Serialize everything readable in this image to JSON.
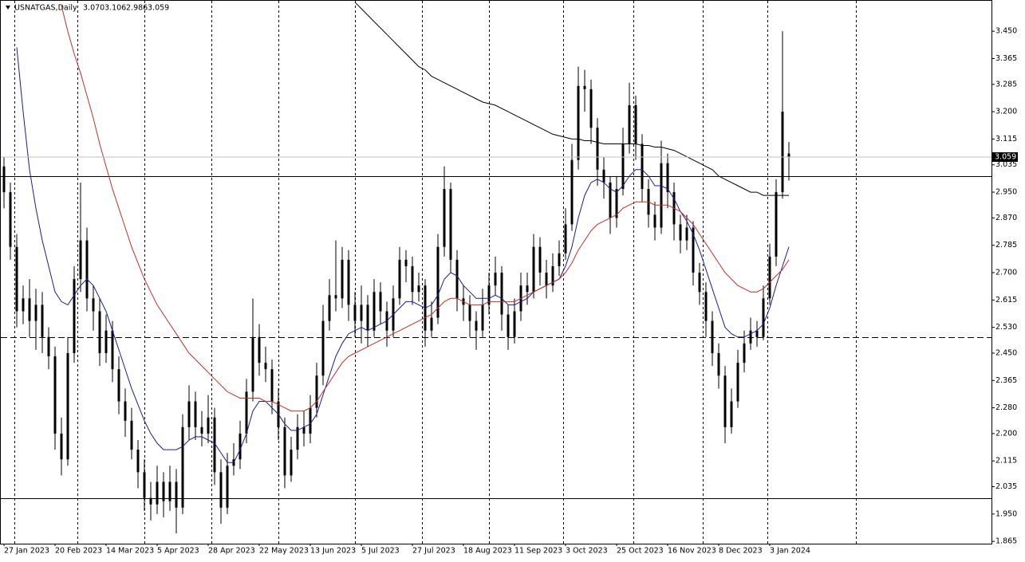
{
  "chart_data": {
    "type": "candlestick",
    "title": "USNATGAS,Daily",
    "last_bar_labels": [
      "3.070",
      "3.106",
      "2.986",
      "3.059"
    ],
    "categories": [
      "27 Jan 2023",
      null,
      null,
      null,
      null,
      null,
      null,
      null,
      "20 Feb 2023",
      null,
      null,
      null,
      null,
      null,
      null,
      null,
      "14 Mar 2023",
      null,
      null,
      null,
      null,
      null,
      null,
      null,
      "5 Apr 2023",
      null,
      null,
      null,
      null,
      null,
      null,
      null,
      "28 Apr 2023",
      null,
      null,
      null,
      null,
      null,
      null,
      null,
      "22 May 2023",
      null,
      null,
      null,
      null,
      null,
      null,
      null,
      "13 Jun 2023",
      null,
      null,
      null,
      null,
      null,
      null,
      null,
      "5 Jul 2023",
      null,
      null,
      null,
      null,
      null,
      null,
      null,
      "27 Jul 2023",
      null,
      null,
      null,
      null,
      null,
      null,
      null,
      "18 Aug 2023",
      null,
      null,
      null,
      null,
      null,
      null,
      null,
      "11 Sep 2023",
      null,
      null,
      null,
      null,
      null,
      null,
      null,
      "3 Oct 2023",
      null,
      null,
      null,
      null,
      null,
      null,
      null,
      "25 Oct 2023",
      null,
      null,
      null,
      null,
      null,
      null,
      null,
      "16 Nov 2023",
      null,
      null,
      null,
      null,
      null,
      null,
      null,
      "8 Dec 2023",
      null,
      null,
      null,
      null,
      null,
      null,
      null,
      "3 Jan 2024",
      null,
      null,
      null
    ],
    "open": [
      3.03,
      2.95,
      2.78,
      2.58,
      2.62,
      2.55,
      2.6,
      2.5,
      2.44,
      2.2,
      2.12,
      2.45,
      2.68,
      2.8,
      2.62,
      2.58,
      2.45,
      2.52,
      2.4,
      2.3,
      2.24,
      2.15,
      2.08,
      2.0,
      1.98,
      2.05,
      1.99,
      2.05,
      1.97,
      2.22,
      2.3,
      2.22,
      2.2,
      2.25,
      2.08,
      1.97,
      2.1,
      2.12,
      2.2,
      2.33,
      2.5,
      2.42,
      2.4,
      2.3,
      2.22,
      2.07,
      2.15,
      2.22,
      2.2,
      2.28,
      2.38,
      2.55,
      2.63,
      2.62,
      2.74,
      2.6,
      2.55,
      2.6,
      2.52,
      2.64,
      2.58,
      2.52,
      2.62,
      2.74,
      2.72,
      2.64,
      2.66,
      2.52,
      2.56,
      2.78,
      2.96,
      2.74,
      2.62,
      2.6,
      2.55,
      2.52,
      2.6,
      2.66,
      2.7,
      2.57,
      2.5,
      2.58,
      2.66,
      2.64,
      2.78,
      2.7,
      2.66,
      2.72,
      2.76,
      2.85,
      3.05,
      3.28,
      3.27,
      3.15,
      3.02,
      2.98,
      2.87,
      2.96,
      3.1,
      3.22,
      3.1,
      2.96,
      2.88,
      2.84,
      3.04,
      2.95,
      2.85,
      2.8,
      2.84,
      2.7,
      2.64,
      2.55,
      2.45,
      2.38,
      2.22,
      2.3,
      2.42,
      2.48,
      2.52,
      2.5,
      2.62,
      2.75,
      2.95,
      3.07
    ],
    "high": [
      3.06,
      2.98,
      2.82,
      2.66,
      2.68,
      2.65,
      2.64,
      2.53,
      2.47,
      2.25,
      2.5,
      2.72,
      2.98,
      2.84,
      2.66,
      2.62,
      2.57,
      2.55,
      2.44,
      2.34,
      2.28,
      2.18,
      2.12,
      2.05,
      2.1,
      2.08,
      2.1,
      2.09,
      2.26,
      2.35,
      2.33,
      2.27,
      2.32,
      2.28,
      2.12,
      2.14,
      2.17,
      2.24,
      2.37,
      2.62,
      2.54,
      2.47,
      2.43,
      2.34,
      2.25,
      2.19,
      2.26,
      2.27,
      2.32,
      2.42,
      2.6,
      2.68,
      2.8,
      2.78,
      2.77,
      2.64,
      2.66,
      2.63,
      2.68,
      2.67,
      2.61,
      2.66,
      2.78,
      2.77,
      2.75,
      2.7,
      2.68,
      2.61,
      2.82,
      3.03,
      2.98,
      2.77,
      2.66,
      2.63,
      2.58,
      2.65,
      2.7,
      2.75,
      2.72,
      2.6,
      2.62,
      2.7,
      2.7,
      2.82,
      2.81,
      2.74,
      2.76,
      2.8,
      2.9,
      3.1,
      3.34,
      3.33,
      3.3,
      3.18,
      3.06,
      3.0,
      3.0,
      3.15,
      3.29,
      3.25,
      3.13,
      2.99,
      2.92,
      3.11,
      3.07,
      2.98,
      2.88,
      2.88,
      2.86,
      2.73,
      2.67,
      2.58,
      2.48,
      2.41,
      2.34,
      2.46,
      2.52,
      2.56,
      2.55,
      2.66,
      2.79,
      2.99,
      3.45,
      3.106
    ],
    "low": [
      2.9,
      2.74,
      2.53,
      2.54,
      2.5,
      2.46,
      2.45,
      2.4,
      2.15,
      2.07,
      2.1,
      2.42,
      2.64,
      2.58,
      2.52,
      2.41,
      2.42,
      2.36,
      2.26,
      2.19,
      2.12,
      2.03,
      1.96,
      1.93,
      1.95,
      1.94,
      1.96,
      1.89,
      1.95,
      2.18,
      2.18,
      2.16,
      2.17,
      2.04,
      1.92,
      1.95,
      2.07,
      2.09,
      2.17,
      2.3,
      2.38,
      2.36,
      2.26,
      2.18,
      2.03,
      2.05,
      2.12,
      2.16,
      2.17,
      2.25,
      2.35,
      2.52,
      2.58,
      2.59,
      2.55,
      2.5,
      2.48,
      2.47,
      2.5,
      2.54,
      2.47,
      2.5,
      2.6,
      2.67,
      2.6,
      2.61,
      2.47,
      2.5,
      2.54,
      2.75,
      2.7,
      2.58,
      2.55,
      2.5,
      2.46,
      2.5,
      2.57,
      2.63,
      2.52,
      2.46,
      2.48,
      2.55,
      2.6,
      2.62,
      2.66,
      2.62,
      2.64,
      2.69,
      2.74,
      2.83,
      3.02,
      3.2,
      3.1,
      2.97,
      2.93,
      2.82,
      2.84,
      2.94,
      3.07,
      3.05,
      2.92,
      2.84,
      2.8,
      2.82,
      2.9,
      2.8,
      2.76,
      2.77,
      2.66,
      2.6,
      2.5,
      2.41,
      2.34,
      2.17,
      2.2,
      2.28,
      2.39,
      2.46,
      2.47,
      2.49,
      2.6,
      2.72,
      2.93,
      2.986
    ],
    "close": [
      2.95,
      2.78,
      2.58,
      2.62,
      2.55,
      2.6,
      2.5,
      2.44,
      2.2,
      2.12,
      2.45,
      2.68,
      2.8,
      2.62,
      2.58,
      2.45,
      2.52,
      2.4,
      2.3,
      2.24,
      2.15,
      2.08,
      2.0,
      1.98,
      2.05,
      1.99,
      2.05,
      1.97,
      2.22,
      2.3,
      2.22,
      2.2,
      2.25,
      2.08,
      1.97,
      2.1,
      2.12,
      2.2,
      2.33,
      2.5,
      2.42,
      2.4,
      2.3,
      2.22,
      2.07,
      2.15,
      2.22,
      2.2,
      2.28,
      2.38,
      2.55,
      2.63,
      2.62,
      2.74,
      2.6,
      2.55,
      2.6,
      2.52,
      2.64,
      2.58,
      2.52,
      2.62,
      2.74,
      2.72,
      2.64,
      2.66,
      2.52,
      2.56,
      2.78,
      2.96,
      2.74,
      2.62,
      2.6,
      2.55,
      2.52,
      2.6,
      2.66,
      2.7,
      2.57,
      2.5,
      2.58,
      2.66,
      2.64,
      2.78,
      2.7,
      2.66,
      2.72,
      2.76,
      2.85,
      3.05,
      3.28,
      3.27,
      3.15,
      3.02,
      2.98,
      2.87,
      2.96,
      3.1,
      3.22,
      3.1,
      2.96,
      2.88,
      2.84,
      3.04,
      2.95,
      2.85,
      2.8,
      2.84,
      2.7,
      2.64,
      2.55,
      2.45,
      2.38,
      2.22,
      2.3,
      2.42,
      2.48,
      2.52,
      2.5,
      2.62,
      2.75,
      2.95,
      3.2,
      3.059
    ],
    "candle_color": "#000000",
    "moving_averages": [
      {
        "color": "#1c1c9c",
        "values": [
          null,
          null,
          3.4,
          3.2,
          3.02,
          2.9,
          2.8,
          2.72,
          2.64,
          2.61,
          2.6,
          2.63,
          2.66,
          2.68,
          2.66,
          2.62,
          2.58,
          2.52,
          2.46,
          2.4,
          2.34,
          2.29,
          2.24,
          2.2,
          2.17,
          2.15,
          2.15,
          2.15,
          2.16,
          2.18,
          2.19,
          2.19,
          2.18,
          2.17,
          2.14,
          2.11,
          2.11,
          2.15,
          2.2,
          2.27,
          2.3,
          2.3,
          2.28,
          2.26,
          2.23,
          2.21,
          2.21,
          2.22,
          2.23,
          2.26,
          2.32,
          2.38,
          2.44,
          2.48,
          2.51,
          2.52,
          2.53,
          2.52,
          2.53,
          2.54,
          2.55,
          2.57,
          2.59,
          2.61,
          2.61,
          2.6,
          2.59,
          2.6,
          2.63,
          2.68,
          2.7,
          2.69,
          2.66,
          2.64,
          2.62,
          2.62,
          2.62,
          2.63,
          2.62,
          2.6,
          2.6,
          2.61,
          2.62,
          2.64,
          2.65,
          2.66,
          2.67,
          2.68,
          2.72,
          2.78,
          2.87,
          2.94,
          2.98,
          2.99,
          2.98,
          2.96,
          2.95,
          2.97,
          3.0,
          3.02,
          3.02,
          3.0,
          2.97,
          2.97,
          2.96,
          2.93,
          2.89,
          2.86,
          2.82,
          2.77,
          2.71,
          2.65,
          2.59,
          2.53,
          2.51,
          2.5,
          2.5,
          2.51,
          2.52,
          2.54,
          2.59,
          2.66,
          2.72,
          2.78
        ]
      },
      {
        "color": "#c0302a",
        "values": [
          null,
          null,
          null,
          null,
          null,
          null,
          null,
          null,
          null,
          3.53,
          3.45,
          3.38,
          3.32,
          3.25,
          3.18,
          3.1,
          3.03,
          2.96,
          2.9,
          2.84,
          2.78,
          2.73,
          2.68,
          2.64,
          2.6,
          2.57,
          2.54,
          2.51,
          2.48,
          2.45,
          2.43,
          2.41,
          2.39,
          2.37,
          2.35,
          2.33,
          2.32,
          2.31,
          2.31,
          2.31,
          2.31,
          2.3,
          2.3,
          2.29,
          2.28,
          2.27,
          2.27,
          2.27,
          2.28,
          2.3,
          2.33,
          2.36,
          2.39,
          2.42,
          2.44,
          2.45,
          2.46,
          2.47,
          2.48,
          2.49,
          2.5,
          2.51,
          2.52,
          2.53,
          2.54,
          2.55,
          2.56,
          2.57,
          2.59,
          2.61,
          2.62,
          2.62,
          2.61,
          2.6,
          2.6,
          2.6,
          2.61,
          2.61,
          2.61,
          2.61,
          2.61,
          2.62,
          2.63,
          2.64,
          2.65,
          2.66,
          2.67,
          2.68,
          2.7,
          2.73,
          2.77,
          2.8,
          2.83,
          2.85,
          2.86,
          2.87,
          2.88,
          2.9,
          2.91,
          2.92,
          2.92,
          2.92,
          2.91,
          2.91,
          2.91,
          2.9,
          2.89,
          2.87,
          2.85,
          2.82,
          2.79,
          2.76,
          2.73,
          2.7,
          2.68,
          2.66,
          2.65,
          2.64,
          2.64,
          2.65,
          2.67,
          2.69,
          2.71,
          2.74
        ]
      },
      {
        "color": "#000000",
        "values": [
          null,
          null,
          null,
          null,
          null,
          null,
          null,
          null,
          null,
          null,
          null,
          null,
          null,
          null,
          null,
          null,
          null,
          null,
          null,
          null,
          null,
          null,
          null,
          null,
          null,
          null,
          null,
          null,
          null,
          null,
          null,
          null,
          null,
          null,
          null,
          null,
          null,
          null,
          null,
          null,
          null,
          null,
          null,
          null,
          null,
          null,
          null,
          null,
          null,
          null,
          null,
          null,
          null,
          null,
          null,
          3.54,
          3.52,
          3.5,
          3.48,
          3.46,
          3.44,
          3.42,
          3.4,
          3.38,
          3.36,
          3.34,
          3.33,
          3.31,
          3.3,
          3.29,
          3.28,
          3.27,
          3.26,
          3.25,
          3.24,
          3.23,
          3.225,
          3.22,
          3.21,
          3.2,
          3.19,
          3.18,
          3.17,
          3.16,
          3.15,
          3.14,
          3.13,
          3.125,
          3.12,
          3.115,
          3.115,
          3.11,
          3.11,
          3.105,
          3.1,
          3.1,
          3.1,
          3.1,
          3.1,
          3.1,
          3.095,
          3.095,
          3.09,
          3.09,
          3.085,
          3.08,
          3.07,
          3.06,
          3.05,
          3.04,
          3.03,
          3.02,
          3.0,
          2.99,
          2.98,
          2.97,
          2.96,
          2.95,
          2.95,
          2.94,
          2.94,
          2.94,
          2.94,
          2.94
        ]
      }
    ],
    "hlines": [
      {
        "value": 3.0,
        "style": "solid"
      },
      {
        "value": 2.5,
        "style": "dashed"
      },
      {
        "value": 2.0,
        "style": "solid"
      }
    ],
    "ylim": [
      1.858,
      3.547
    ],
    "yticks": [
      {
        "value": 1.865,
        "label": "1.865"
      },
      {
        "value": 1.95,
        "label": "1.950"
      },
      {
        "value": 2.035,
        "label": "2.035"
      },
      {
        "value": 2.115,
        "label": "2.115"
      },
      {
        "value": 2.2,
        "label": "2.200"
      },
      {
        "value": 2.28,
        "label": "2.280"
      },
      {
        "value": 2.365,
        "label": "2.365"
      },
      {
        "value": 2.45,
        "label": "2.450"
      },
      {
        "value": 2.53,
        "label": "2.530"
      },
      {
        "value": 2.615,
        "label": "2.615"
      },
      {
        "value": 2.7,
        "label": "2.700"
      },
      {
        "value": 2.785,
        "label": "2.785"
      },
      {
        "value": 2.87,
        "label": "2.870"
      },
      {
        "value": 2.95,
        "label": "2.950"
      },
      {
        "value": 3.035,
        "label": "3.035"
      },
      {
        "value": 3.115,
        "label": "3.115"
      },
      {
        "value": 3.2,
        "label": "3.200"
      },
      {
        "value": 3.285,
        "label": "3.285"
      },
      {
        "value": 3.365,
        "label": "3.365"
      },
      {
        "value": 3.45,
        "label": "3.450"
      }
    ]
  }
}
